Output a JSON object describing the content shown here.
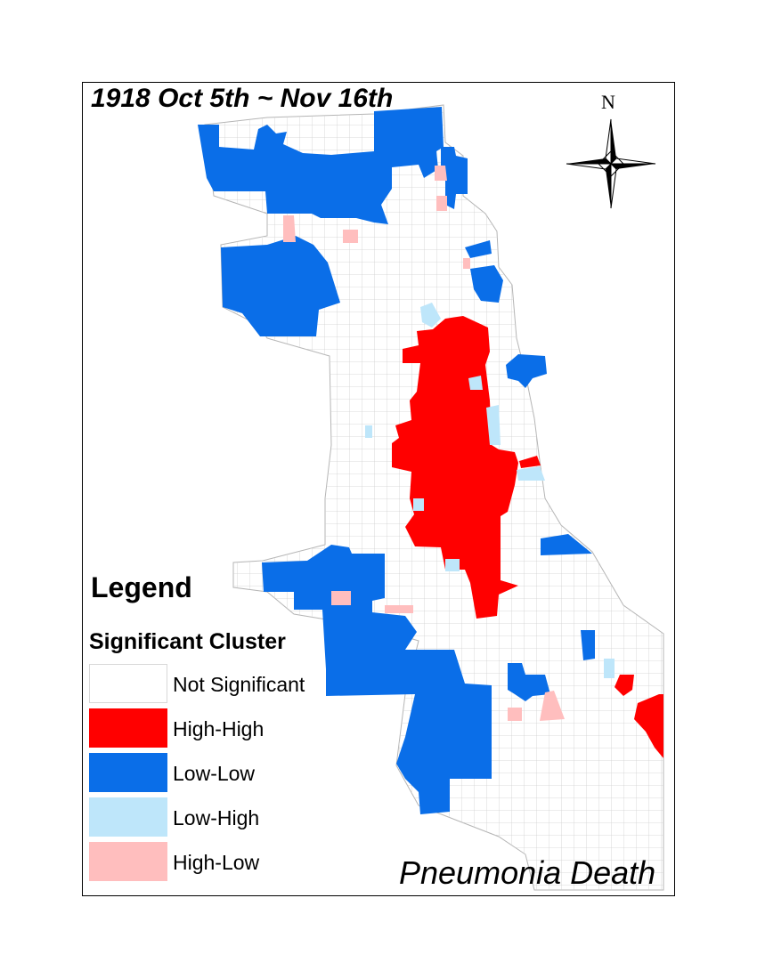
{
  "map": {
    "title": "1918 Oct 5th ~ Nov 16th",
    "subtitle": "Pneumonia Death",
    "north_label": "N",
    "colors": {
      "not_significant": "#ffffff",
      "high_high": "#ff0000",
      "low_low": "#0a6ee8",
      "low_high": "#bee6fa",
      "high_low": "#ffbebe",
      "boundary": "#c8c8c8"
    }
  },
  "legend": {
    "title": "Legend",
    "subtitle": "Significant Cluster",
    "items": [
      {
        "label": "Not Significant",
        "color": "#ffffff"
      },
      {
        "label": "High-High",
        "color": "#ff0000"
      },
      {
        "label": "Low-Low",
        "color": "#0a6ee8"
      },
      {
        "label": "Low-High",
        "color": "#bee6fa"
      },
      {
        "label": "High-Low",
        "color": "#ffbebe"
      }
    ]
  }
}
